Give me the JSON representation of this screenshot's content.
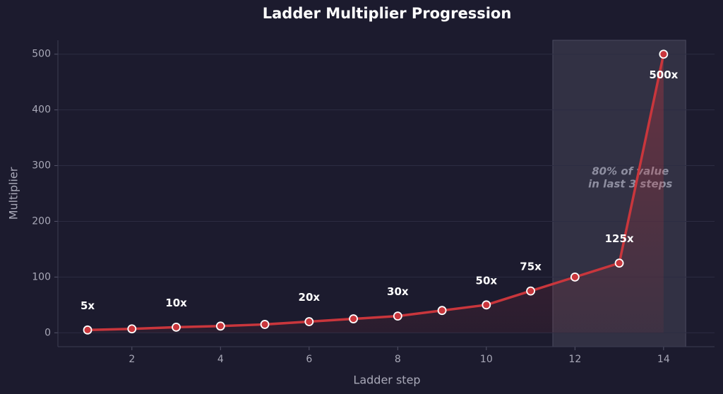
{
  "chart_data": {
    "type": "line",
    "title": "Ladder Multiplier Progression",
    "x_label": "Ladder step",
    "y_label": "Multiplier",
    "x": [
      1,
      2,
      3,
      4,
      5,
      6,
      7,
      8,
      9,
      10,
      11,
      12,
      13,
      14
    ],
    "series": [
      {
        "name": "Multiplier",
        "color": "#c9363c",
        "values": [
          5,
          7,
          10,
          12,
          15,
          20,
          25,
          30,
          40,
          50,
          75,
          100,
          125,
          500
        ],
        "value_labels": [
          "5x",
          null,
          "10x",
          null,
          null,
          "20x",
          null,
          "30x",
          null,
          "50x",
          "75x",
          null,
          "125x",
          "500x"
        ]
      }
    ],
    "highlight": [
      11.5,
      14.5
    ],
    "annotation": [
      "80% of value",
      "in last 3 steps"
    ],
    "xlim": [
      0.33,
      15.15
    ],
    "ylim": [
      -25,
      525
    ],
    "xticks": [
      2,
      4,
      6,
      8,
      10,
      12,
      14
    ],
    "yticks": [
      0,
      100,
      200,
      300,
      400,
      500
    ],
    "grid": true
  }
}
